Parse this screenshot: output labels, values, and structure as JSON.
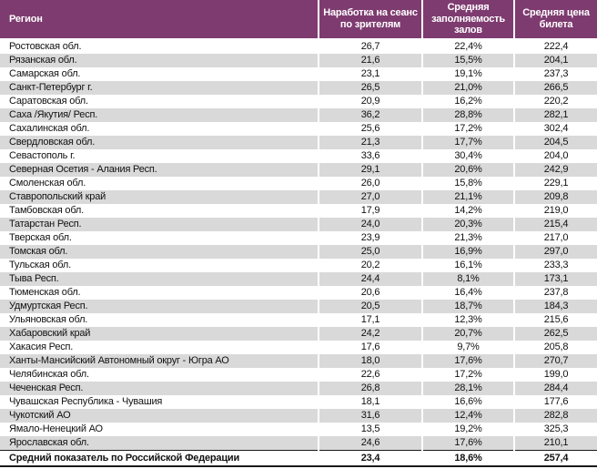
{
  "colors": {
    "header_bg": "#7E3B70",
    "header_text": "#FFFFFF",
    "stripe_row_bg": "#D9D9D9",
    "body_text": "#111111",
    "footer_border": "#1A1A1A"
  },
  "table": {
    "columns": [
      "Регион",
      "Наработка на сеанс по зрителям",
      "Средняя заполняемость залов",
      "Средняя цена билета"
    ],
    "rows": [
      [
        "Ростовская обл.",
        "26,7",
        "22,4%",
        "222,4"
      ],
      [
        "Рязанская обл.",
        "21,6",
        "15,5%",
        "204,1"
      ],
      [
        "Самарская обл.",
        "23,1",
        "19,1%",
        "237,3"
      ],
      [
        "Санкт-Петербург г.",
        "26,5",
        "21,0%",
        "266,5"
      ],
      [
        "Саратовская обл.",
        "20,9",
        "16,2%",
        "220,2"
      ],
      [
        "Саха /Якутия/ Респ.",
        "36,2",
        "28,8%",
        "282,1"
      ],
      [
        "Сахалинская обл.",
        "25,6",
        "17,2%",
        "302,4"
      ],
      [
        "Свердловская обл.",
        "21,3",
        "17,7%",
        "204,5"
      ],
      [
        "Севастополь г.",
        "33,6",
        "30,4%",
        "204,0"
      ],
      [
        "Северная Осетия - Алания Респ.",
        "29,1",
        "20,6%",
        "242,9"
      ],
      [
        "Смоленская обл.",
        "26,0",
        "15,8%",
        "229,1"
      ],
      [
        "Ставропольский край",
        "27,0",
        "21,1%",
        "209,8"
      ],
      [
        "Тамбовская обл.",
        "17,9",
        "14,2%",
        "219,0"
      ],
      [
        "Татарстан Респ.",
        "24,0",
        "20,3%",
        "215,4"
      ],
      [
        "Тверская обл.",
        "23,9",
        "21,3%",
        "217,0"
      ],
      [
        "Томская обл.",
        "25,0",
        "16,9%",
        "297,0"
      ],
      [
        "Тульская обл.",
        "20,2",
        "16,1%",
        "233,3"
      ],
      [
        "Тыва Респ.",
        "24,4",
        "8,1%",
        "173,1"
      ],
      [
        "Тюменская обл.",
        "20,6",
        "16,4%",
        "237,8"
      ],
      [
        "Удмуртская Респ.",
        "20,5",
        "18,7%",
        "184,3"
      ],
      [
        "Ульяновская обл.",
        "17,1",
        "12,3%",
        "215,6"
      ],
      [
        "Хабаровский край",
        "24,2",
        "20,7%",
        "262,5"
      ],
      [
        "Хакасия Респ.",
        "17,6",
        "9,7%",
        "205,8"
      ],
      [
        "Ханты-Мансийский Автономный округ - Югра АО",
        "18,0",
        "17,6%",
        "270,7"
      ],
      [
        "Челябинская обл.",
        "22,6",
        "17,2%",
        "199,0"
      ],
      [
        "Чеченская Респ.",
        "26,8",
        "28,1%",
        "284,4"
      ],
      [
        "Чувашская Республика - Чувашия",
        "18,1",
        "16,6%",
        "177,6"
      ],
      [
        "Чукотский АО",
        "31,6",
        "12,4%",
        "282,8"
      ],
      [
        "Ямало-Ненецкий АО",
        "13,5",
        "19,2%",
        "325,3"
      ],
      [
        "Ярославская обл.",
        "24,6",
        "17,6%",
        "210,1"
      ]
    ],
    "footer": {
      "label": "Средний показатель по Российской Федерации",
      "viewers": "23,4",
      "occupancy": "18,6%",
      "price": "257,4"
    }
  }
}
